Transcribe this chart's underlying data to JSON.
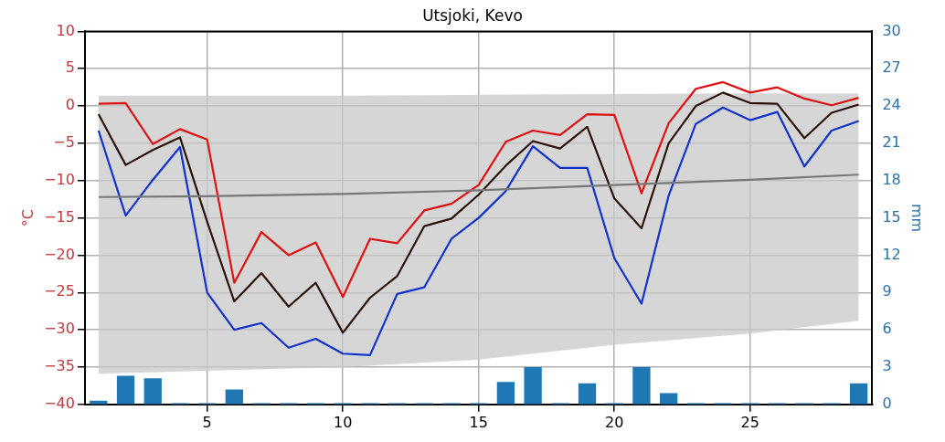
{
  "chart_data": {
    "type": "line",
    "title": "Utsjoki, Kevo",
    "ylabel": "°C",
    "y2label": "mm",
    "x": [
      1,
      2,
      3,
      4,
      5,
      6,
      7,
      8,
      9,
      10,
      11,
      12,
      13,
      14,
      15,
      16,
      17,
      18,
      19,
      20,
      21,
      22,
      23,
      24,
      25,
      26,
      27,
      28,
      29
    ],
    "xlim": [
      0.5,
      29.5
    ],
    "xticks": [
      5,
      10,
      15,
      20,
      25
    ],
    "ylim": [
      -40,
      10
    ],
    "yticks": [
      -40,
      -35,
      -30,
      -25,
      -20,
      -15,
      -10,
      -5,
      0,
      5,
      10
    ],
    "y2lim": [
      0,
      30
    ],
    "y2ticks": [
      0,
      3,
      6,
      9,
      12,
      15,
      18,
      21,
      24,
      27,
      30
    ],
    "grid": true,
    "legend": false,
    "marker": "none",
    "line_style": "solid",
    "series": [
      {
        "color": "#777777",
        "x": [
          1,
          5,
          10,
          15,
          20,
          25,
          29
        ],
        "values": [
          -12.2,
          -12.1,
          -11.8,
          -11.3,
          -10.6,
          -9.9,
          -9.2
        ],
        "lower": [
          -35.9,
          -35.5,
          -35,
          -34,
          -32,
          -30.5,
          -28.8
        ],
        "upper": [
          1.4,
          1.4,
          1.4,
          1.5,
          1.6,
          1.7,
          1.7
        ]
      },
      {
        "type": "bar",
        "axis": "y2",
        "color": "#1f77b4",
        "values": [
          0.3,
          2.3,
          2.1,
          0.1,
          0.1,
          1.2,
          0.1,
          0.1,
          0.1,
          0.1,
          0.1,
          0.1,
          0.1,
          0.1,
          0.1,
          1.8,
          3.0,
          0.1,
          1.7,
          0.1,
          3.0,
          0.9,
          0.1,
          0.1,
          0.1,
          0.1,
          0.1,
          0.1,
          1.7
        ]
      },
      {
        "color": "#1133cc",
        "values": [
          -3.3,
          -14.7,
          -9.9,
          -5.5,
          -25,
          -30,
          -29.1,
          -32.4,
          -31.2,
          -33.2,
          -33.4,
          -25.2,
          -24.3,
          -17.8,
          -15,
          -11.4,
          -5.4,
          -8.3,
          -8.3,
          -20.4,
          -26.5,
          -12,
          -2.4,
          -0.2,
          -1.9,
          -0.8,
          -8.1,
          -3.3,
          -2.0
        ]
      },
      {
        "color": "#2b1208",
        "values": [
          -1.1,
          -7.9,
          -5.9,
          -4.2,
          -15.5,
          -26.2,
          -22.4,
          -26.9,
          -23.7,
          -30.4,
          -25.7,
          -22.8,
          -16.1,
          -15.1,
          -11.9,
          -8,
          -4.7,
          -5.7,
          -2.8,
          -12.4,
          -16.4,
          -5,
          0,
          1.8,
          0.4,
          0.3,
          -4.3,
          -0.9,
          0.2
        ]
      },
      {
        "color": "#dd1111",
        "values": [
          0.3,
          0.4,
          -5.1,
          -3.1,
          -4.5,
          -23.7,
          -16.9,
          -20,
          -18.3,
          -25.6,
          -17.8,
          -18.4,
          -14,
          -13.1,
          -10.6,
          -4.8,
          -3.3,
          -3.9,
          -1.1,
          -1.2,
          -11.7,
          -2.3,
          2.3,
          3.2,
          1.8,
          2.5,
          1,
          0.1,
          1.1
        ]
      }
    ]
  }
}
